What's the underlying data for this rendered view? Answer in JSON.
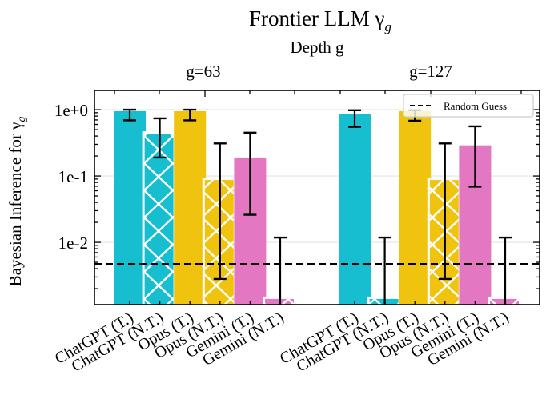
{
  "chart_data": {
    "type": "bar",
    "title": "Frontier LLM γ",
    "title_subscript": "g",
    "top_axis_label": "Depth g",
    "ylabel": "Bayesian Inference for γ",
    "ylabel_subscript": "g",
    "yscale": "log",
    "ylim": [
      0.00115,
      1.95
    ],
    "yticks": [
      {
        "value": 1,
        "label": "1e+0"
      },
      {
        "value": 0.1,
        "label": "1e-1"
      },
      {
        "value": 0.01,
        "label": "1e-2"
      }
    ],
    "grid": "horizontal major",
    "legend_placement": "top-right",
    "groups": [
      {
        "label": "g=63",
        "bars": [
          {
            "label": "ChatGPT (T.)",
            "value": 0.95,
            "err_low": 0.69,
            "err_high": 1.0,
            "color": "#17becf",
            "hatch": false
          },
          {
            "label": "ChatGPT (N.T.)",
            "value": 0.435,
            "err_low": 0.19,
            "err_high": 0.74,
            "color": "#17becf",
            "hatch": true
          },
          {
            "label": "Opus (T.)",
            "value": 0.95,
            "err_low": 0.69,
            "err_high": 1.0,
            "color": "#f0c30f",
            "hatch": false
          },
          {
            "label": "Opus (N.T.)",
            "value": 0.087,
            "err_low": 0.0028,
            "err_high": 0.31,
            "color": "#f0c30f",
            "hatch": true
          },
          {
            "label": "Gemini (T.)",
            "value": 0.19,
            "err_low": 0.026,
            "err_high": 0.45,
            "color": "#e377c2",
            "hatch": false
          },
          {
            "label": "Gemini (N.T.)",
            "value": 0.0014,
            "err_low": 0,
            "err_high": 0.0118,
            "color": "#e377c2",
            "hatch": true
          }
        ]
      },
      {
        "label": "g=127",
        "bars": [
          {
            "label": "ChatGPT (T.)",
            "value": 0.85,
            "err_low": 0.55,
            "err_high": 0.98,
            "color": "#17becf",
            "hatch": false
          },
          {
            "label": "ChatGPT (N.T.)",
            "value": 0.0014,
            "err_low": 0,
            "err_high": 0.0118,
            "color": "#17becf",
            "hatch": true
          },
          {
            "label": "Opus (T.)",
            "value": 0.95,
            "err_low": 0.68,
            "err_high": 0.98,
            "color": "#f0c30f",
            "hatch": false
          },
          {
            "label": "Opus (N.T.)",
            "value": 0.087,
            "err_low": 0.0028,
            "err_high": 0.31,
            "color": "#f0c30f",
            "hatch": true
          },
          {
            "label": "Gemini (T.)",
            "value": 0.29,
            "err_low": 0.069,
            "err_high": 0.56,
            "color": "#e377c2",
            "hatch": false
          },
          {
            "label": "Gemini (N.T.)",
            "value": 0.0014,
            "err_low": 0,
            "err_high": 0.0118,
            "color": "#e377c2",
            "hatch": true
          }
        ]
      }
    ],
    "reference_line": {
      "label": "Random Guess",
      "value": 0.0047,
      "style": "dashed",
      "color": "#000000"
    }
  }
}
